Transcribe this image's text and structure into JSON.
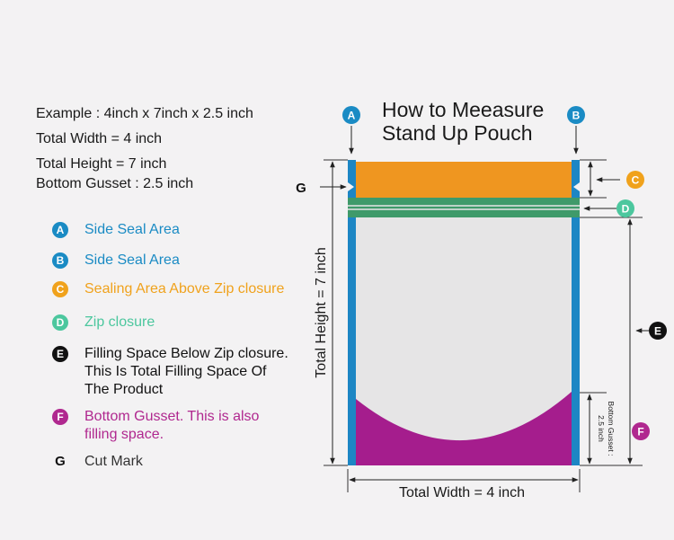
{
  "specs": {
    "example": "Example : 4inch x 7inch x 2.5 inch",
    "total_width": "Total Width = 4 inch",
    "total_height": "Total Height = 7 inch",
    "bottom_gusset": "Bottom Gusset : 2.5 inch"
  },
  "legend": [
    {
      "badge": "A",
      "text": "Side Seal Area",
      "color": "#1a8bc4"
    },
    {
      "badge": "B",
      "text": "Side Seal Area",
      "color": "#1a8bc4"
    },
    {
      "badge": "C",
      "text": "Sealing Area Above Zip closure",
      "color": "#f0a21c"
    },
    {
      "badge": "D",
      "text": "Zip closure",
      "color": "#4cc79e"
    },
    {
      "badge": "E",
      "text": "Filling Space Below Zip closure.",
      "text2": "This Is Total Filling Space Of",
      "text3": "The Product",
      "color": "#111111"
    },
    {
      "badge": "F",
      "text": "Bottom Gusset. This is also",
      "text2": "filling space.",
      "color": "#b0288f"
    },
    {
      "badge": "G",
      "text": "Cut Mark",
      "color": "#111111"
    }
  ],
  "diagram": {
    "title_line1": "How to Meeasure",
    "title_line2": "Stand Up Pouch",
    "width_label": "Total Width = 4 inch",
    "height_label": "Total Height = 7 inch",
    "gusset_label_line1": "Bottom Gusset :",
    "gusset_label_line2": "2.5 inch",
    "marker_a": "A",
    "marker_b": "B",
    "marker_c": "C",
    "marker_d": "D",
    "marker_e": "E",
    "marker_f": "F",
    "marker_g": "G"
  },
  "colors": {
    "side_seal": "#1d86c4",
    "top_seal": "#ef9620",
    "zip": "#3f9a6a",
    "body": "#e6e5e6",
    "gusset": "#a51d8d",
    "badge_a_b": "#1a8bc4",
    "badge_c": "#f0a21c",
    "badge_d": "#4cc79e",
    "badge_e": "#111111",
    "badge_f": "#b0288f"
  }
}
